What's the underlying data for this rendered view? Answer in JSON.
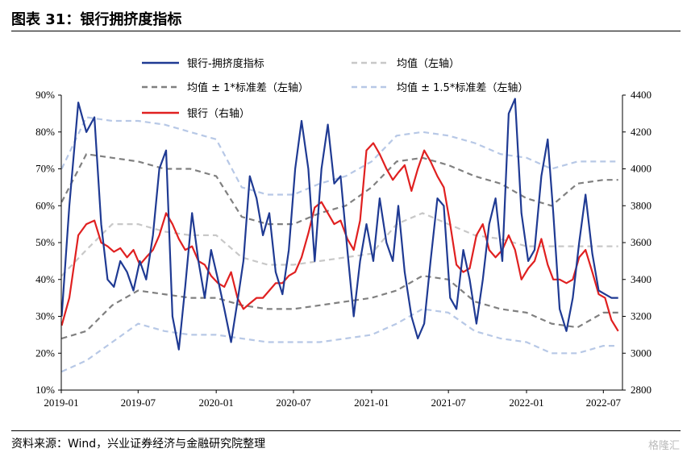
{
  "header": {
    "title": "图表 31：银行拥挤度指标"
  },
  "footer": {
    "source": "资料来源：Wind，兴业证券经济与金融研究院整理",
    "watermark": "格隆汇"
  },
  "chart_data": {
    "type": "line",
    "title": "图表 31：银行拥挤度指标",
    "left_axis": {
      "min": 0.1,
      "max": 0.9,
      "ticks": [
        "10%",
        "20%",
        "30%",
        "40%",
        "50%",
        "60%",
        "70%",
        "80%",
        "90%"
      ],
      "tick_values": [
        0.1,
        0.2,
        0.3,
        0.4,
        0.5,
        0.6,
        0.7,
        0.8,
        0.9
      ]
    },
    "right_axis": {
      "min": 2800,
      "max": 4400,
      "ticks": [
        "2800",
        "3000",
        "3200",
        "3400",
        "3600",
        "3800",
        "4000",
        "4200",
        "4400"
      ],
      "tick_values": [
        2800,
        3000,
        3200,
        3400,
        3600,
        3800,
        4000,
        4200,
        4400
      ]
    },
    "x_axis": {
      "start": "2019-01",
      "end": "2022-08",
      "ticks": [
        "2019-01",
        "2019-07",
        "2020-01",
        "2020-07",
        "2021-01",
        "2021-07",
        "2022-01",
        "2022-07"
      ]
    },
    "grid": false,
    "legend_position": "top",
    "series": [
      {
        "name": "银行-拥挤度指标",
        "axis": "left",
        "color": "#1f3a93",
        "style": "solid",
        "x": [
          "2019-01-02",
          "2019-01-20",
          "2019-02-10",
          "2019-03-01",
          "2019-03-20",
          "2019-04-05",
          "2019-04-20",
          "2019-05-05",
          "2019-05-20",
          "2019-06-05",
          "2019-06-20",
          "2019-07-05",
          "2019-07-20",
          "2019-08-05",
          "2019-08-20",
          "2019-09-05",
          "2019-09-20",
          "2019-10-05",
          "2019-10-20",
          "2019-11-05",
          "2019-11-20",
          "2019-12-05",
          "2019-12-20",
          "2020-01-05",
          "2020-01-20",
          "2020-02-05",
          "2020-02-20",
          "2020-03-05",
          "2020-03-20",
          "2020-04-05",
          "2020-04-20",
          "2020-05-05",
          "2020-05-20",
          "2020-06-05",
          "2020-06-20",
          "2020-07-05",
          "2020-07-20",
          "2020-08-05",
          "2020-08-20",
          "2020-09-05",
          "2020-09-20",
          "2020-10-05",
          "2020-10-20",
          "2020-11-05",
          "2020-11-20",
          "2020-12-05",
          "2020-12-20",
          "2021-01-05",
          "2021-01-20",
          "2021-02-05",
          "2021-02-20",
          "2021-03-05",
          "2021-03-20",
          "2021-04-05",
          "2021-04-20",
          "2021-05-05",
          "2021-05-20",
          "2021-06-05",
          "2021-06-20",
          "2021-07-05",
          "2021-07-20",
          "2021-08-05",
          "2021-08-20",
          "2021-09-05",
          "2021-09-20",
          "2021-10-05",
          "2021-10-20",
          "2021-11-05",
          "2021-11-20",
          "2021-12-05",
          "2021-12-20",
          "2022-01-05",
          "2022-01-20",
          "2022-02-05",
          "2022-02-20",
          "2022-03-05",
          "2022-03-20",
          "2022-04-05",
          "2022-04-20",
          "2022-05-05",
          "2022-05-20",
          "2022-06-05",
          "2022-06-20",
          "2022-07-05",
          "2022-07-20",
          "2022-08-05"
        ],
        "y": [
          0.3,
          0.6,
          0.88,
          0.8,
          0.84,
          0.55,
          0.4,
          0.38,
          0.45,
          0.42,
          0.37,
          0.45,
          0.4,
          0.52,
          0.7,
          0.75,
          0.3,
          0.21,
          0.38,
          0.58,
          0.45,
          0.35,
          0.48,
          0.4,
          0.32,
          0.23,
          0.34,
          0.45,
          0.68,
          0.62,
          0.52,
          0.58,
          0.42,
          0.36,
          0.48,
          0.7,
          0.83,
          0.7,
          0.45,
          0.7,
          0.82,
          0.66,
          0.68,
          0.48,
          0.3,
          0.45,
          0.55,
          0.45,
          0.62,
          0.5,
          0.45,
          0.6,
          0.42,
          0.3,
          0.24,
          0.28,
          0.45,
          0.62,
          0.6,
          0.35,
          0.32,
          0.48,
          0.4,
          0.28,
          0.4,
          0.55,
          0.62,
          0.45,
          0.85,
          0.89,
          0.58,
          0.45,
          0.48,
          0.68,
          0.78,
          0.58,
          0.32,
          0.26,
          0.35,
          0.5,
          0.63,
          0.47,
          0.37,
          0.36,
          0.35,
          0.35
        ]
      },
      {
        "name": "均值（左轴）",
        "axis": "left",
        "color": "#c8c8c8",
        "style": "dashed",
        "x": [
          "2019-01-02",
          "2019-03-01",
          "2019-05-01",
          "2019-07-01",
          "2019-09-01",
          "2019-11-01",
          "2020-01-01",
          "2020-03-01",
          "2020-05-01",
          "2020-07-01",
          "2020-09-01",
          "2020-11-01",
          "2021-01-01",
          "2021-03-01",
          "2021-05-01",
          "2021-07-01",
          "2021-09-01",
          "2021-11-01",
          "2022-01-01",
          "2022-03-01",
          "2022-05-01",
          "2022-07-01",
          "2022-08-05"
        ],
        "y": [
          0.41,
          0.48,
          0.55,
          0.55,
          0.53,
          0.52,
          0.52,
          0.46,
          0.44,
          0.44,
          0.45,
          0.46,
          0.47,
          0.55,
          0.58,
          0.55,
          0.52,
          0.51,
          0.49,
          0.49,
          0.49,
          0.49,
          0.49
        ]
      },
      {
        "name": "均值 ± 1*标准差（左轴）",
        "axis": "left",
        "color": "#808080",
        "style": "dashed",
        "x": [
          "2019-01-02",
          "2019-03-01",
          "2019-05-01",
          "2019-07-01",
          "2019-09-01",
          "2019-11-01",
          "2020-01-01",
          "2020-03-01",
          "2020-05-01",
          "2020-07-01",
          "2020-09-01",
          "2020-11-01",
          "2021-01-01",
          "2021-03-01",
          "2021-05-01",
          "2021-07-01",
          "2021-09-01",
          "2021-11-01",
          "2022-01-01",
          "2022-03-01",
          "2022-05-01",
          "2022-07-01",
          "2022-08-05"
        ],
        "y": [
          0.61,
          0.74,
          0.73,
          0.72,
          0.7,
          0.7,
          0.68,
          0.57,
          0.55,
          0.55,
          0.58,
          0.6,
          0.65,
          0.72,
          0.73,
          0.71,
          0.68,
          0.66,
          0.62,
          0.6,
          0.66,
          0.67,
          0.67
        ],
        "y2": [
          0.24,
          0.26,
          0.33,
          0.37,
          0.36,
          0.35,
          0.35,
          0.33,
          0.32,
          0.32,
          0.33,
          0.34,
          0.35,
          0.37,
          0.41,
          0.4,
          0.34,
          0.32,
          0.31,
          0.28,
          0.27,
          0.31,
          0.31
        ]
      },
      {
        "name": "均值 ± 1.5*标准差（左轴）",
        "axis": "left",
        "color": "#b7c8e6",
        "style": "dashed",
        "x": [
          "2019-01-02",
          "2019-03-01",
          "2019-05-01",
          "2019-07-01",
          "2019-09-01",
          "2019-11-01",
          "2020-01-01",
          "2020-03-01",
          "2020-05-01",
          "2020-07-01",
          "2020-09-01",
          "2020-11-01",
          "2021-01-01",
          "2021-03-01",
          "2021-05-01",
          "2021-07-01",
          "2021-09-01",
          "2021-11-01",
          "2022-01-01",
          "2022-03-01",
          "2022-05-01",
          "2022-07-01",
          "2022-08-05"
        ],
        "y": [
          0.7,
          0.84,
          0.83,
          0.83,
          0.82,
          0.8,
          0.78,
          0.65,
          0.63,
          0.63,
          0.66,
          0.68,
          0.72,
          0.79,
          0.8,
          0.79,
          0.77,
          0.74,
          0.73,
          0.7,
          0.72,
          0.72,
          0.72
        ],
        "y2": [
          0.15,
          0.18,
          0.23,
          0.28,
          0.26,
          0.25,
          0.25,
          0.24,
          0.23,
          0.23,
          0.23,
          0.24,
          0.25,
          0.28,
          0.32,
          0.31,
          0.26,
          0.24,
          0.23,
          0.2,
          0.2,
          0.22,
          0.22
        ]
      },
      {
        "name": "银行（右轴）",
        "axis": "right",
        "color": "#e02020",
        "style": "solid",
        "x": [
          "2019-01-02",
          "2019-01-20",
          "2019-02-10",
          "2019-03-01",
          "2019-03-20",
          "2019-04-05",
          "2019-04-20",
          "2019-05-05",
          "2019-05-20",
          "2019-06-05",
          "2019-06-20",
          "2019-07-05",
          "2019-07-20",
          "2019-08-05",
          "2019-08-20",
          "2019-09-05",
          "2019-09-20",
          "2019-10-05",
          "2019-10-20",
          "2019-11-05",
          "2019-11-20",
          "2019-12-05",
          "2019-12-20",
          "2020-01-05",
          "2020-01-20",
          "2020-02-05",
          "2020-02-20",
          "2020-03-05",
          "2020-03-20",
          "2020-04-05",
          "2020-04-20",
          "2020-05-05",
          "2020-05-20",
          "2020-06-05",
          "2020-06-20",
          "2020-07-05",
          "2020-07-20",
          "2020-08-05",
          "2020-08-20",
          "2020-09-05",
          "2020-09-20",
          "2020-10-05",
          "2020-10-20",
          "2020-11-05",
          "2020-11-20",
          "2020-12-05",
          "2020-12-20",
          "2021-01-05",
          "2021-01-20",
          "2021-02-05",
          "2021-02-20",
          "2021-03-05",
          "2021-03-20",
          "2021-04-05",
          "2021-04-20",
          "2021-05-05",
          "2021-05-20",
          "2021-06-05",
          "2021-06-20",
          "2021-07-05",
          "2021-07-20",
          "2021-08-05",
          "2021-08-20",
          "2021-09-05",
          "2021-09-20",
          "2021-10-05",
          "2021-10-20",
          "2021-11-05",
          "2021-11-20",
          "2021-12-05",
          "2021-12-20",
          "2022-01-05",
          "2022-01-20",
          "2022-02-05",
          "2022-02-20",
          "2022-03-05",
          "2022-03-20",
          "2022-04-05",
          "2022-04-20",
          "2022-05-05",
          "2022-05-20",
          "2022-06-05",
          "2022-06-20",
          "2022-07-05",
          "2022-07-20",
          "2022-08-05"
        ],
        "y": [
          3150,
          3300,
          3640,
          3700,
          3720,
          3600,
          3580,
          3550,
          3570,
          3520,
          3560,
          3480,
          3520,
          3560,
          3640,
          3760,
          3700,
          3620,
          3560,
          3580,
          3500,
          3480,
          3420,
          3380,
          3360,
          3440,
          3300,
          3240,
          3270,
          3300,
          3300,
          3340,
          3380,
          3380,
          3420,
          3440,
          3520,
          3650,
          3790,
          3820,
          3760,
          3700,
          3720,
          3620,
          3560,
          3720,
          4100,
          4140,
          4080,
          4000,
          3940,
          3980,
          4020,
          3880,
          4000,
          4100,
          4040,
          3960,
          3900,
          3700,
          3480,
          3440,
          3460,
          3640,
          3700,
          3560,
          3520,
          3560,
          3640,
          3560,
          3400,
          3460,
          3500,
          3620,
          3480,
          3400,
          3400,
          3380,
          3400,
          3520,
          3560,
          3440,
          3320,
          3300,
          3180,
          3120
        ]
      }
    ]
  }
}
